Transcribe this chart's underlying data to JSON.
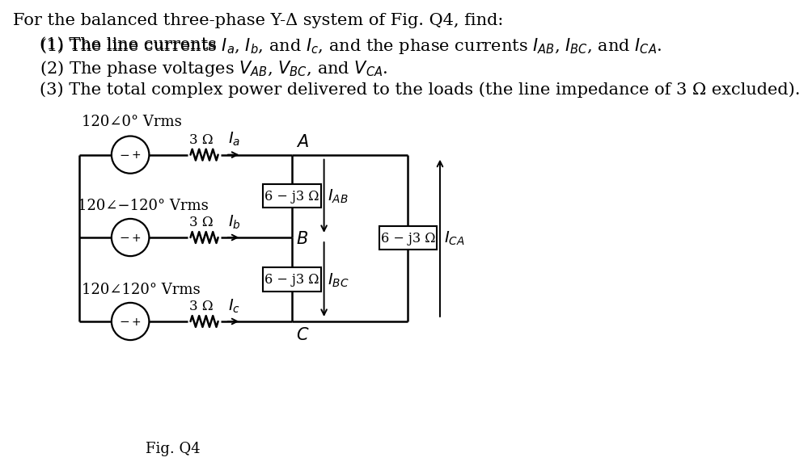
{
  "bg": "#ffffff",
  "black": "#000000",
  "title": "For the balanced three-phase Y-Δ system of Fig. Q4, find:",
  "line1_pre": "(1) The line currents ",
  "line1_mid": ", and the phase currents ",
  "line2_pre": "(2) The phase voltages ",
  "line3": "(3) The total complex power delivered to the loads (the line impedance of 3 Ω excluded).",
  "src1_label": "120∠0° Vrms",
  "src2_label": "120∠−120° Vrms",
  "src3_label": "120∠120° Vrms",
  "res_label": "3 Ω",
  "load_label": "6 − j3 Ω",
  "fig_label": "Fig. Q4",
  "text_fs": 15,
  "circ_fs": 13,
  "label_fs": 14
}
